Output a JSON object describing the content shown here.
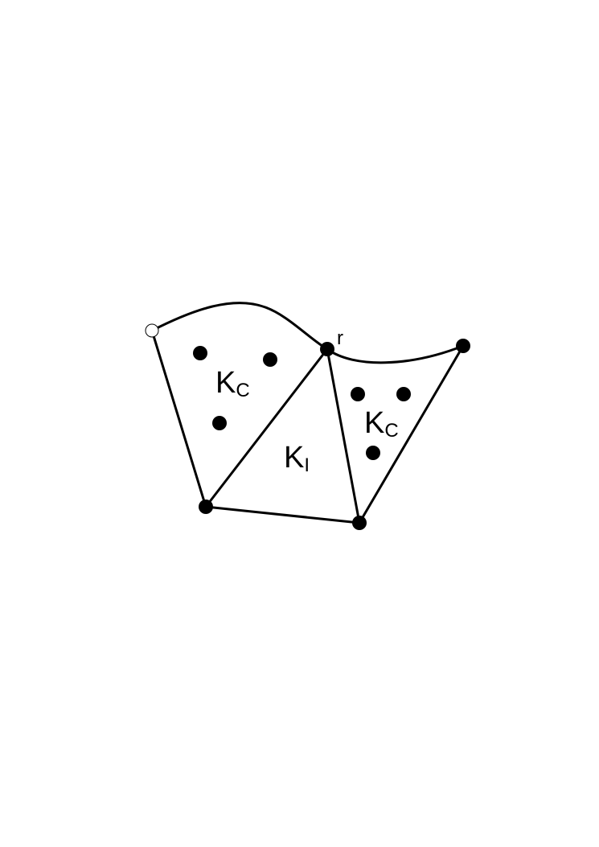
{
  "labels": {
    "left_element": {
      "main": "K",
      "sub": "C"
    },
    "middle_element": {
      "main": "K",
      "sub": "I"
    },
    "right_element": {
      "main": "K",
      "sub": "C"
    },
    "vertex_r": "r"
  },
  "colors": {
    "stroke": "#000000",
    "node_fill": "#000000",
    "background": "#ffffff"
  }
}
